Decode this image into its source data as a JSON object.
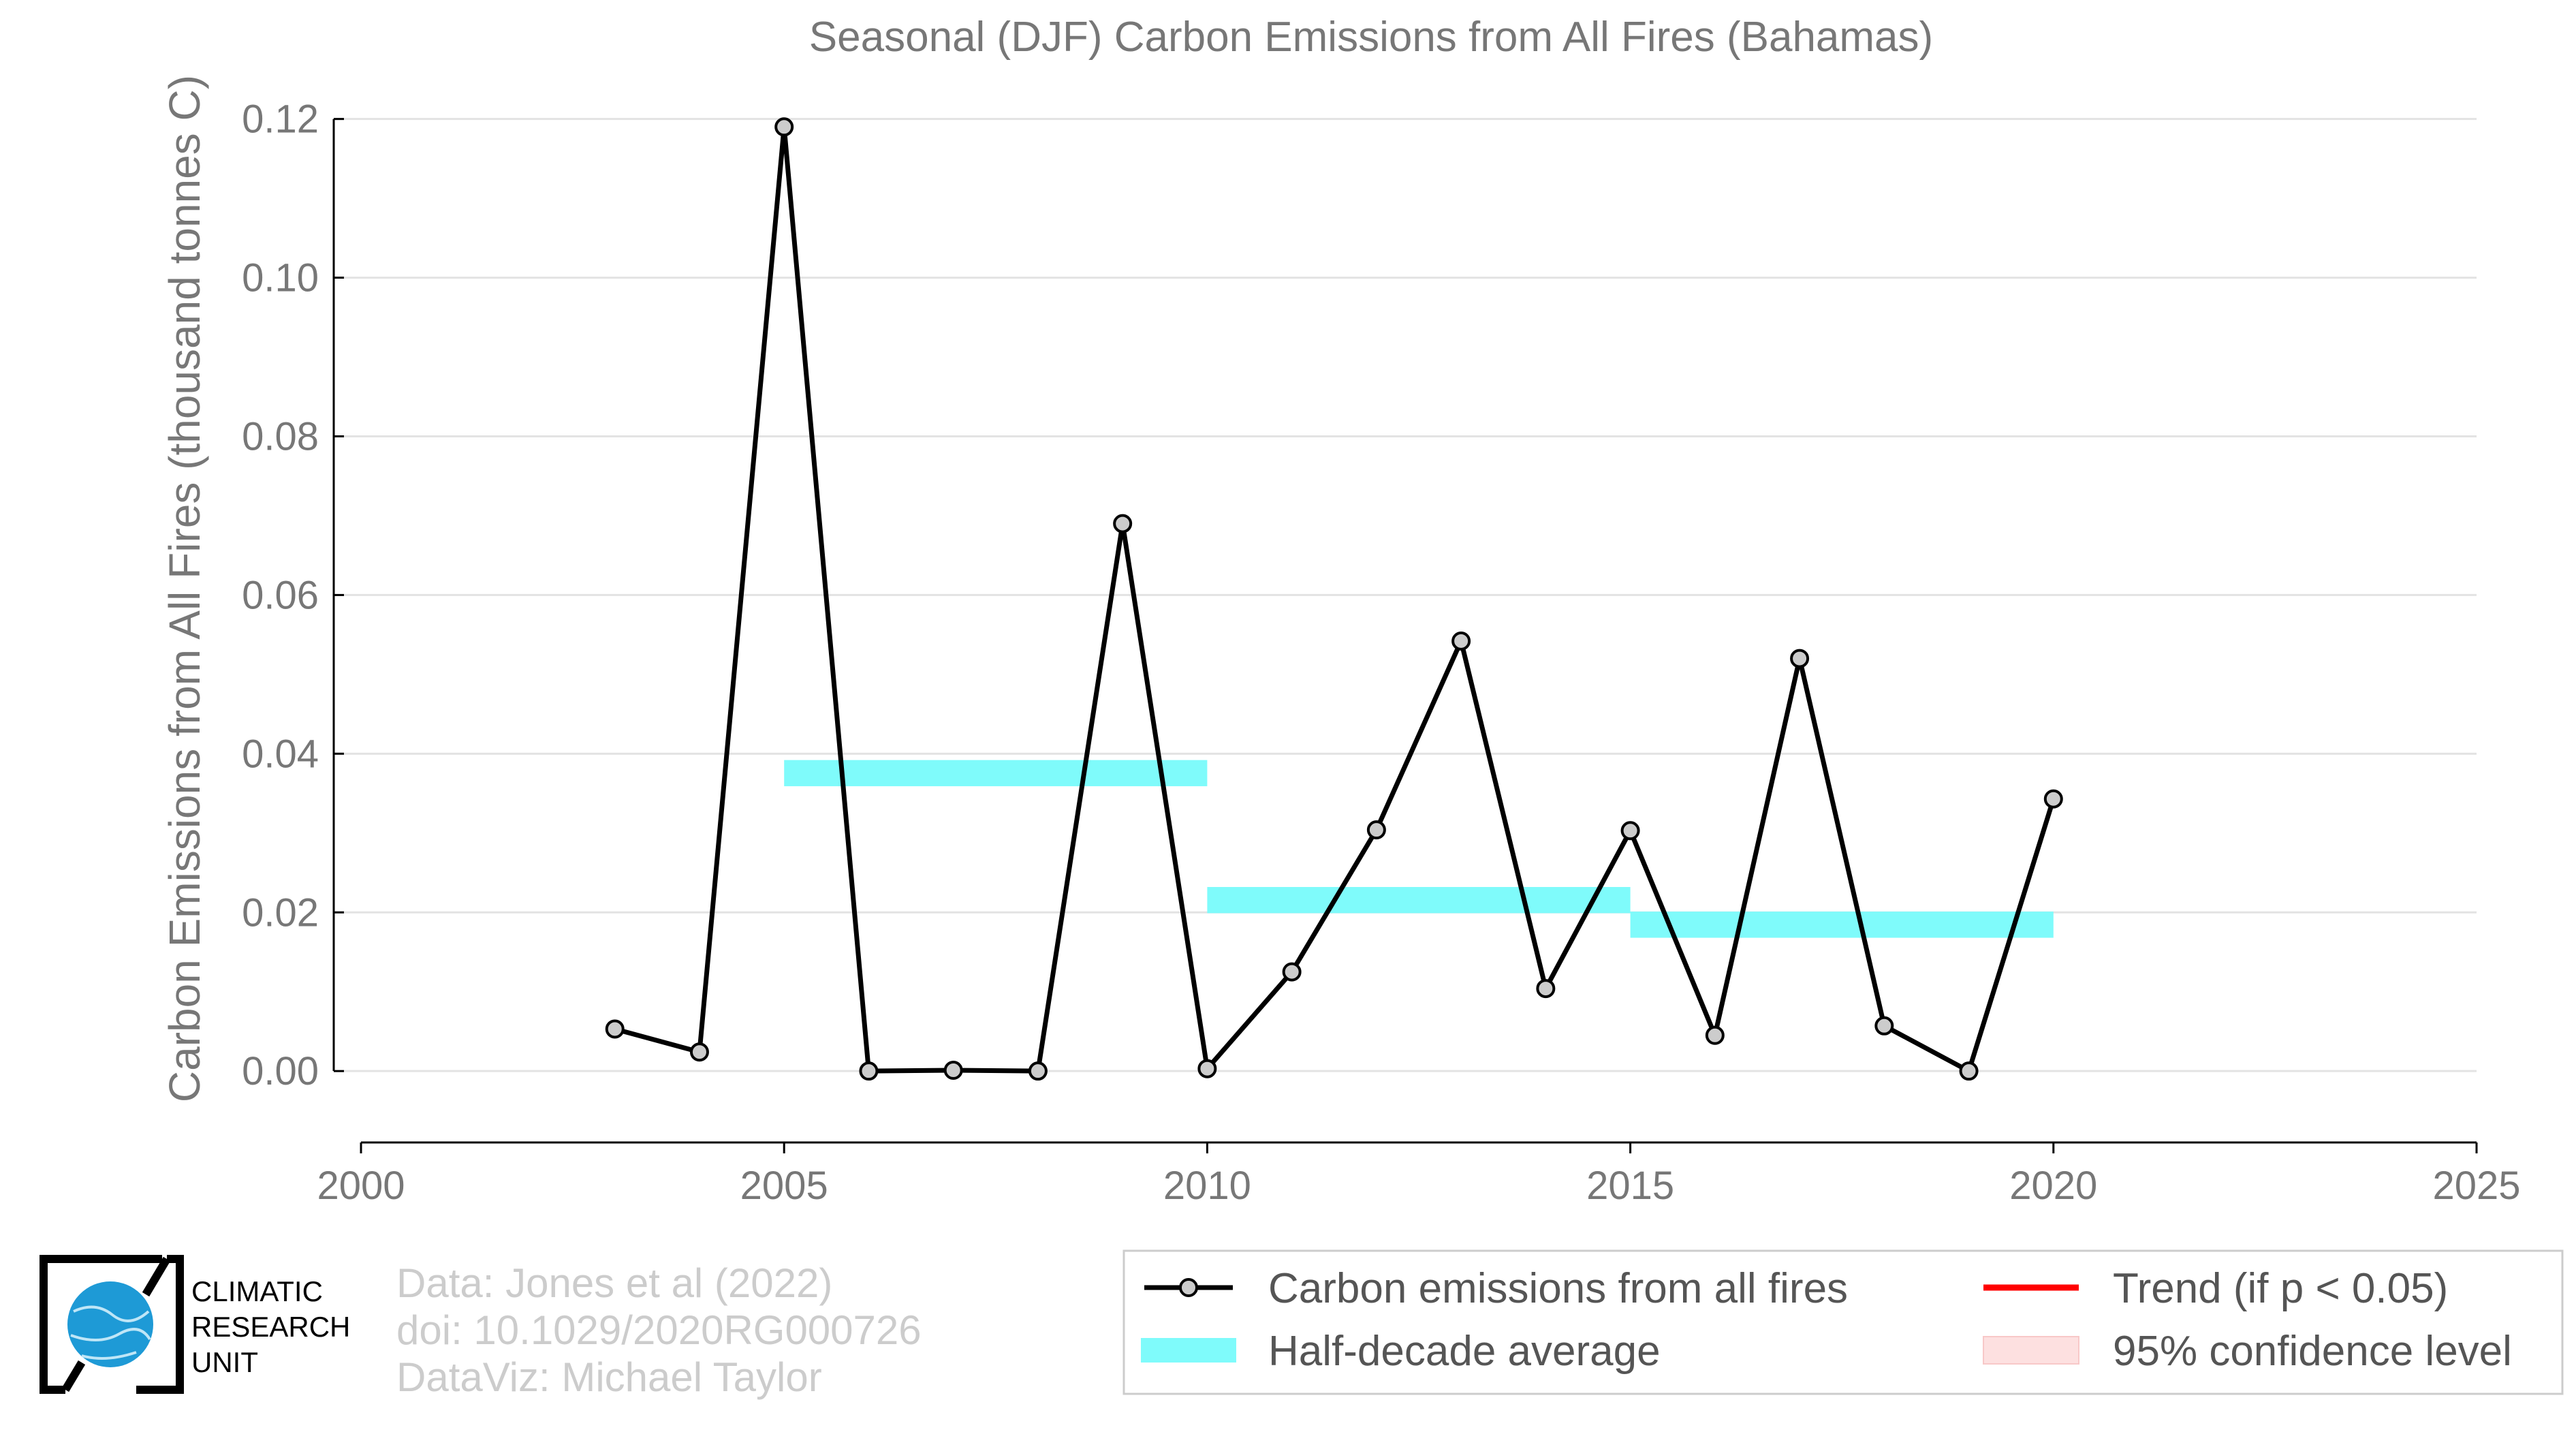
{
  "chart_data": {
    "type": "line",
    "title": "Seasonal (DJF) Carbon Emissions from All Fires (Bahamas)",
    "xlabel": "",
    "ylabel": "Carbon Emissions from All Fires (thousand tonnes C)",
    "xlim": [
      2000,
      2025
    ],
    "ylim": [
      -0.009,
      0.121
    ],
    "xticks": [
      2000,
      2005,
      2010,
      2015,
      2020,
      2025
    ],
    "xtick_labels": [
      "2000",
      "2005",
      "2010",
      "2015",
      "2020",
      "2025"
    ],
    "yticks": [
      0.0,
      0.02,
      0.04,
      0.06,
      0.08,
      0.1,
      0.12
    ],
    "ytick_labels": [
      "0.00",
      "0.02",
      "0.04",
      "0.06",
      "0.08",
      "0.10",
      "0.12"
    ],
    "grid": true,
    "series": [
      {
        "name": "Carbon emissions from all fires",
        "color": "#000000",
        "marker_color": "#cccccc",
        "x": [
          2003,
          2004,
          2005,
          2006,
          2007,
          2008,
          2009,
          2010,
          2011,
          2012,
          2013,
          2014,
          2015,
          2016,
          2017,
          2018,
          2019,
          2020
        ],
        "y": [
          0.0053,
          0.0024,
          0.119,
          0.0,
          0.0001,
          0.0,
          0.069,
          0.0003,
          0.0125,
          0.0304,
          0.0542,
          0.0104,
          0.0303,
          0.0045,
          0.052,
          0.0057,
          0.0,
          0.0343
        ]
      }
    ],
    "half_decade_average": {
      "name": "Half-decade average",
      "color": "#7ffbfb",
      "segments": [
        {
          "x_start": 2005,
          "x_end": 2010,
          "y_low": 0.0359,
          "y_high": 0.0392
        },
        {
          "x_start": 2010,
          "x_end": 2015,
          "y_low": 0.0199,
          "y_high": 0.0232
        },
        {
          "x_start": 2015,
          "x_end": 2020,
          "y_low": 0.0168,
          "y_high": 0.0201
        }
      ]
    },
    "legend": {
      "placement": "bottom-right",
      "items": [
        {
          "label": "Carbon emissions from all fires",
          "kind": "line-marker",
          "color": "#000000"
        },
        {
          "label": "Trend (if p < 0.05)",
          "kind": "line",
          "color": "#ff0000"
        },
        {
          "label": "Half-decade average",
          "kind": "band",
          "color": "#7ffbfb"
        },
        {
          "label": "95% confidence level",
          "kind": "band",
          "color": "#fde0e0"
        }
      ]
    }
  },
  "credits": {
    "line1": "Data: Jones et al (2022)",
    "line2": "doi: 10.1029/2020RG000726",
    "line3": "DataViz: Michael Taylor"
  },
  "logo": {
    "line1": "CLIMATIC",
    "line2": "RESEARCH",
    "line3": "UNIT",
    "globe_color": "#1e9ad6"
  }
}
